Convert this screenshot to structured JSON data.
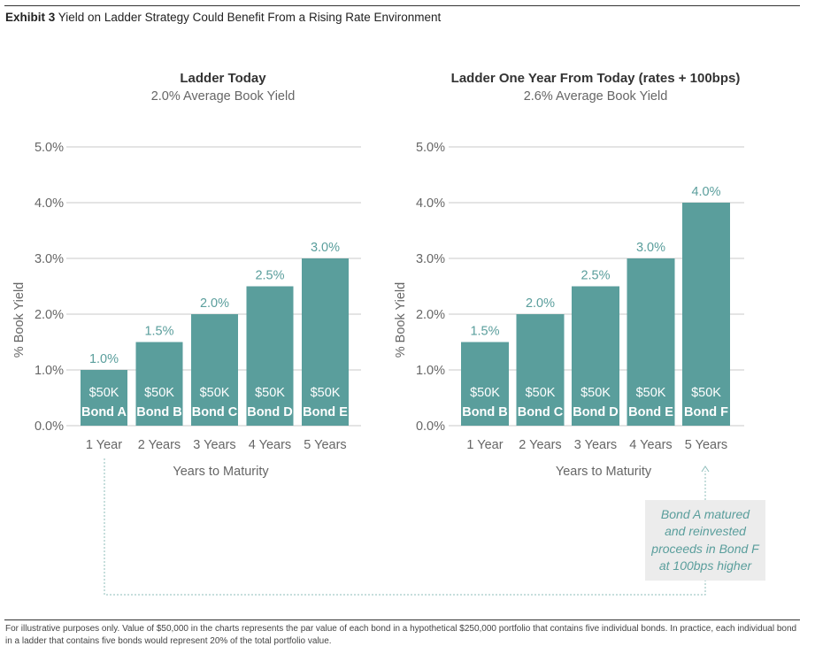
{
  "exhibit": {
    "label": "Exhibit 3",
    "title": "Yield on Ladder Strategy Could Benefit From a Rising Rate Environment"
  },
  "colors": {
    "bar": "#5a9e9c",
    "value_label": "#5a9e9c",
    "gridline": "#c8c8c8",
    "axis_text": "#666666",
    "bar_text": "#ffffff",
    "callout_bg": "#ececec",
    "connector": "#8dbcba"
  },
  "callout": {
    "text": "Bond A matured and reinvested proceeds in Bond F at 100bps higher"
  },
  "footnote": "For illustrative purposes only. Value of $50,000 in the charts represents the par value of each bond in a hypothetical $250,000 portfolio that contains five individual bonds. In practice, each individual bond in a ladder that contains five bonds would represent 20% of the total portfolio value.",
  "chart_data": [
    {
      "type": "bar",
      "title": "Ladder Today",
      "subtitle": "2.0% Average Book Yield",
      "xlabel": "Years to Maturity",
      "ylabel": "% Book Yield",
      "ylim": [
        0,
        5
      ],
      "yticks": [
        "0.0%",
        "1.0%",
        "2.0%",
        "3.0%",
        "4.0%",
        "5.0%"
      ],
      "grid": true,
      "categories": [
        "1 Year",
        "2 Years",
        "3 Years",
        "4 Years",
        "5 Years"
      ],
      "values": [
        1.0,
        1.5,
        2.0,
        2.5,
        3.0
      ],
      "value_labels": [
        "1.0%",
        "1.5%",
        "2.0%",
        "2.5%",
        "3.0%"
      ],
      "bar_amounts": [
        "$50K",
        "$50K",
        "$50K",
        "$50K",
        "$50K"
      ],
      "bar_names": [
        "Bond A",
        "Bond B",
        "Bond C",
        "Bond D",
        "Bond E"
      ]
    },
    {
      "type": "bar",
      "title": "Ladder One Year From Today (rates + 100bps)",
      "subtitle": "2.6% Average Book Yield",
      "xlabel": "Years to Maturity",
      "ylabel": "% Book Yield",
      "ylim": [
        0,
        5
      ],
      "yticks": [
        "0.0%",
        "1.0%",
        "2.0%",
        "3.0%",
        "4.0%",
        "5.0%"
      ],
      "grid": true,
      "categories": [
        "1 Year",
        "2 Years",
        "3 Years",
        "4 Years",
        "5 Years"
      ],
      "values": [
        1.5,
        2.0,
        2.5,
        3.0,
        4.0
      ],
      "value_labels": [
        "1.5%",
        "2.0%",
        "2.5%",
        "3.0%",
        "4.0%"
      ],
      "bar_amounts": [
        "$50K",
        "$50K",
        "$50K",
        "$50K",
        "$50K"
      ],
      "bar_names": [
        "Bond B",
        "Bond C",
        "Bond D",
        "Bond E",
        "Bond F"
      ]
    }
  ]
}
